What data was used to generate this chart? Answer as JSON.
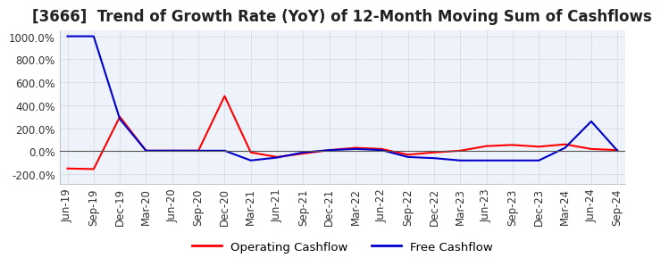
{
  "title": "[3666]  Trend of Growth Rate (YoY) of 12-Month Moving Sum of Cashflows",
  "ylim": [
    -280,
    1050
  ],
  "yticks": [
    -200,
    0,
    200,
    400,
    600,
    800,
    1000
  ],
  "plot_bg": "#eef3fb",
  "fig_bg": "#ffffff",
  "grid_color": "#aaaaaa",
  "x_labels": [
    "Jun-19",
    "Sep-19",
    "Dec-19",
    "Mar-20",
    "Jun-20",
    "Sep-20",
    "Dec-20",
    "Mar-21",
    "Jun-21",
    "Sep-21",
    "Dec-21",
    "Mar-22",
    "Jun-22",
    "Sep-22",
    "Dec-22",
    "Mar-23",
    "Jun-23",
    "Sep-23",
    "Dec-23",
    "Mar-24",
    "Jun-24",
    "Sep-24"
  ],
  "operating_cashflow": [
    -150,
    -155,
    300,
    5,
    5,
    5,
    480,
    -10,
    -50,
    -20,
    10,
    30,
    20,
    -30,
    -10,
    5,
    45,
    55,
    40,
    60,
    20,
    10
  ],
  "free_cashflow": [
    1000,
    1000,
    280,
    5,
    5,
    5,
    5,
    -80,
    -55,
    -10,
    10,
    20,
    10,
    -50,
    -60,
    -80,
    -80,
    -80,
    -80,
    30,
    260,
    5
  ],
  "op_color": "#ff0000",
  "fc_color": "#0000cc",
  "legend_labels": [
    "Operating Cashflow",
    "Free Cashflow"
  ],
  "title_fontsize": 12,
  "tick_fontsize": 8.5,
  "legend_fontsize": 9.5,
  "line_width": 1.5
}
